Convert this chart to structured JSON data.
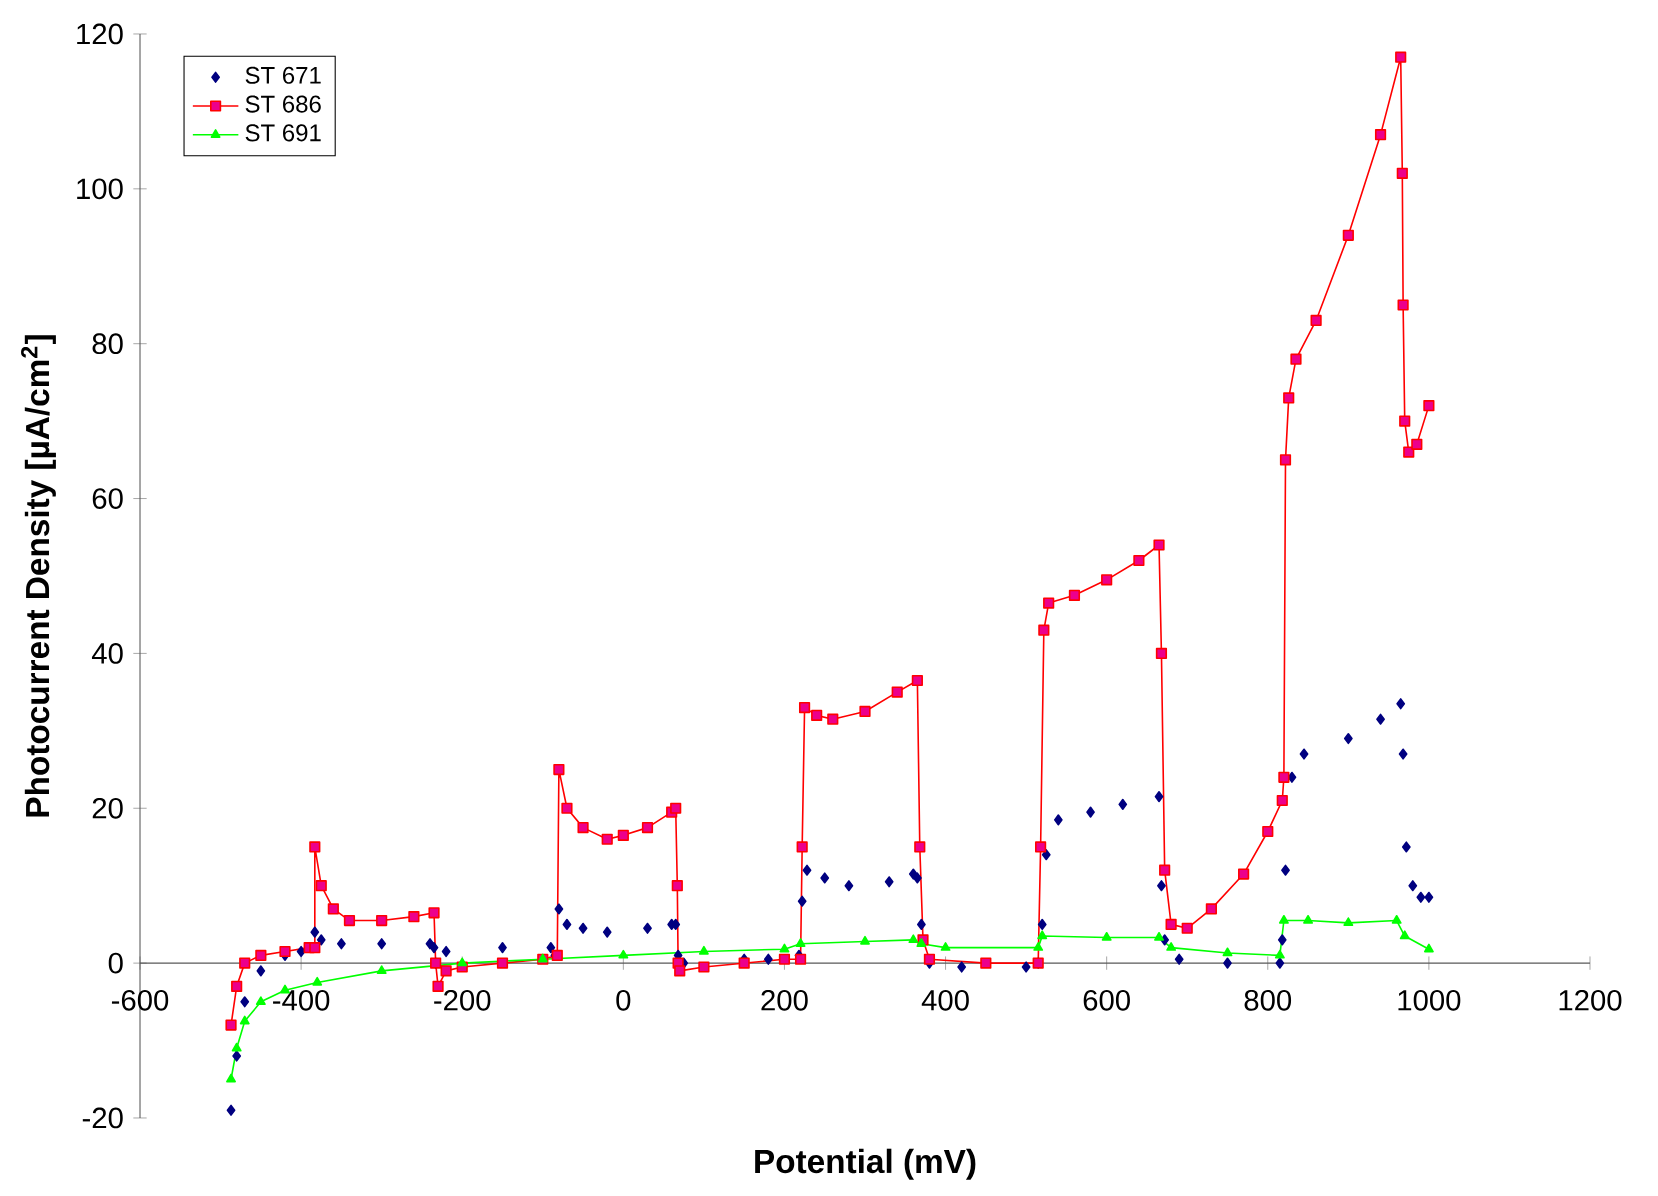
{
  "chart_data": {
    "type": "line",
    "xlabel": "Potential (mV)",
    "ylabel": "Photocurrent Density [µA/cm$^{2}$]",
    "xlim": [
      -600,
      1200
    ],
    "ylim": [
      -20,
      120
    ],
    "xticks": [
      -600,
      -400,
      -200,
      0,
      200,
      400,
      600,
      800,
      1000,
      1200
    ],
    "yticks": [
      -20,
      0,
      20,
      40,
      60,
      80,
      100,
      120
    ],
    "grid": false,
    "legend": "top left",
    "series": [
      {
        "name": "ST 671",
        "type": "scatter",
        "marker": "diamond",
        "color": "#000080",
        "x": [
          -487,
          -480,
          -470,
          -450,
          -420,
          -400,
          -383,
          -375,
          -350,
          -300,
          -240,
          -235,
          -233,
          -220,
          -150,
          -90,
          -85,
          -80,
          -70,
          -50,
          -20,
          30,
          60,
          65,
          68,
          75,
          150,
          180,
          218,
          222,
          228,
          250,
          280,
          330,
          360,
          365,
          370,
          380,
          420,
          500,
          515,
          520,
          525,
          540,
          580,
          620,
          665,
          668,
          672,
          690,
          750,
          815,
          818,
          822,
          830,
          845,
          900,
          940,
          965,
          968,
          972,
          980,
          990,
          1000
        ],
        "values": [
          -19,
          -12,
          -5,
          -1,
          1,
          1.5,
          4,
          3,
          2.5,
          2.5,
          2.5,
          2,
          0,
          1.5,
          2,
          2,
          1,
          7,
          5,
          4.5,
          4,
          4.5,
          5,
          5,
          1,
          0,
          0.5,
          0.5,
          1,
          8,
          12,
          11,
          10,
          10.5,
          11.5,
          11,
          5,
          0,
          -0.5,
          -0.5,
          0,
          5,
          14,
          18.5,
          19.5,
          20.5,
          21.5,
          10,
          3,
          0.5,
          0,
          0,
          3,
          12,
          24,
          27,
          29,
          31.5,
          33.5,
          27,
          15,
          10,
          8.5,
          8.5
        ]
      },
      {
        "name": "ST 686",
        "marker": "square",
        "color": "#ff0000",
        "x": [
          -487,
          -480,
          -470,
          -450,
          -420,
          -390,
          -383,
          -383,
          -375,
          -360,
          -340,
          -300,
          -260,
          -235,
          -233,
          -230,
          -220,
          -200,
          -150,
          -100,
          -82,
          -80,
          -70,
          -50,
          -20,
          0,
          30,
          60,
          65,
          67,
          68,
          70,
          100,
          150,
          200,
          220,
          222,
          225,
          240,
          260,
          300,
          340,
          365,
          368,
          372,
          380,
          450,
          515,
          518,
          522,
          528,
          560,
          600,
          640,
          665,
          668,
          672,
          680,
          700,
          730,
          770,
          800,
          818,
          820,
          822,
          826,
          835,
          860,
          900,
          940,
          965,
          967,
          968,
          970,
          975,
          985,
          1000
        ],
        "values": [
          -8,
          -3,
          0,
          1,
          1.5,
          2,
          2,
          15,
          10,
          7,
          5.5,
          5.5,
          6,
          6.5,
          0,
          -3,
          -1,
          -0.5,
          0,
          0.5,
          1,
          25,
          20,
          17.5,
          16,
          16.5,
          17.5,
          19.5,
          20,
          10,
          0,
          -1,
          -0.5,
          0,
          0.5,
          0.5,
          15,
          33,
          32,
          31.5,
          32.5,
          35,
          36.5,
          15,
          3,
          0.5,
          0,
          0,
          15,
          43,
          46.5,
          47.5,
          49.5,
          52,
          54,
          40,
          12,
          5,
          4.5,
          7,
          11.5,
          17,
          21,
          24,
          65,
          73,
          78,
          83,
          94,
          107,
          117,
          102,
          85,
          70,
          66,
          67,
          72
        ]
      },
      {
        "name": "ST 691",
        "marker": "triangle",
        "color": "#00ff00",
        "x": [
          -487,
          -480,
          -470,
          -450,
          -420,
          -380,
          -300,
          -200,
          -100,
          0,
          100,
          200,
          220,
          300,
          360,
          370,
          400,
          515,
          520,
          600,
          665,
          680,
          750,
          815,
          820,
          850,
          900,
          960,
          970,
          1000
        ],
        "values": [
          -15,
          -11,
          -7.5,
          -5,
          -3.5,
          -2.5,
          -1,
          0,
          0.5,
          1,
          1.5,
          1.8,
          2.5,
          2.8,
          3,
          2.5,
          2,
          2,
          3.5,
          3.3,
          3.3,
          2,
          1.3,
          1,
          5.5,
          5.5,
          5.2,
          5.5,
          3.5,
          1.8
        ]
      }
    ]
  }
}
